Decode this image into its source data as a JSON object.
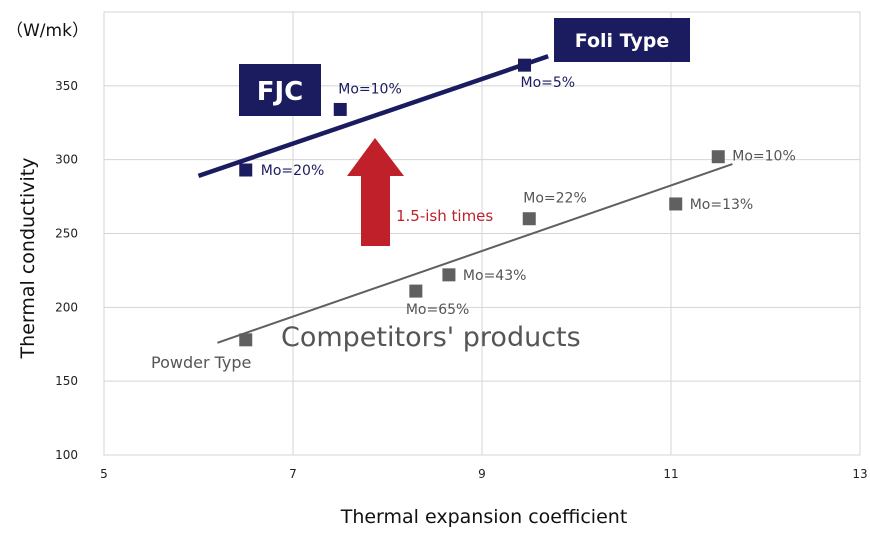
{
  "chart_data": {
    "type": "scatter",
    "unit_label": "（W/mk）",
    "xlabel": "Thermal expansion coefficient",
    "ylabel": "Thermal conductivity",
    "xlim": [
      5,
      13
    ],
    "ylim": [
      100,
      400
    ],
    "x_ticks": [
      5,
      7,
      9,
      11,
      13
    ],
    "y_ticks": [
      100,
      150,
      200,
      250,
      300,
      350
    ],
    "grid": true,
    "series": [
      {
        "name": "FJC",
        "color": "#1b1b60",
        "points": [
          {
            "x": 6.5,
            "y": 293,
            "label": "Mo=20%"
          },
          {
            "x": 7.5,
            "y": 334,
            "label": "Mo=10%"
          },
          {
            "x": 9.45,
            "y": 364,
            "label": "Mo=5%"
          }
        ],
        "trend": [
          [
            6.0,
            289
          ],
          [
            9.7,
            370
          ]
        ]
      },
      {
        "name": "Competitors' products",
        "color": "#606060",
        "points": [
          {
            "x": 6.5,
            "y": 178,
            "label": ""
          },
          {
            "x": 8.3,
            "y": 211,
            "label": "Mo=65%"
          },
          {
            "x": 8.65,
            "y": 222,
            "label": "Mo=43%"
          },
          {
            "x": 9.5,
            "y": 260,
            "label": "Mo=22%"
          },
          {
            "x": 11.05,
            "y": 270,
            "label": "Mo=13%"
          },
          {
            "x": 11.5,
            "y": 302,
            "label": "Mo=10%"
          }
        ],
        "trend": [
          [
            6.2,
            176
          ],
          [
            11.65,
            297
          ]
        ]
      }
    ],
    "annotations": {
      "foli_type": "Foli Type",
      "fjc": "FJC",
      "arrow_text": "1.5-ish times",
      "competitors": "Competitors' products",
      "powder_type": "Powder Type"
    },
    "colors": {
      "fjc": "#1b1b60",
      "competitor": "#606060",
      "arrow": "#c0202a",
      "grid": "#d4d4d4"
    }
  }
}
